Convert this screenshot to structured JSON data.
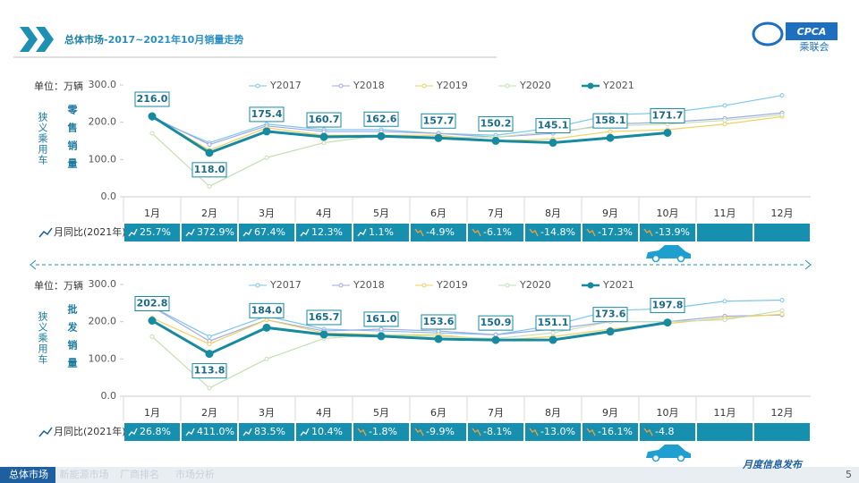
{
  "header": {
    "title_main": "总体市场",
    "title_rest": "-2017~2021年10月销量走势",
    "logo": "CPCA",
    "logo_sub": "乘联会"
  },
  "chart_data": [
    {
      "type": "line",
      "unit": "单位：万辆",
      "side_label": "狭义乘用车",
      "chart_label": "零售销量",
      "categories": [
        "1月",
        "2月",
        "3月",
        "4月",
        "5月",
        "6月",
        "7月",
        "8月",
        "9月",
        "10月",
        "11月",
        "12月"
      ],
      "ylim": [
        0,
        300
      ],
      "yticks": [
        {
          "value": 0,
          "label": "0.0"
        },
        {
          "value": 100,
          "label": "100.0"
        },
        {
          "value": 200,
          "label": "200.0"
        },
        {
          "value": 300,
          "label": "300.0"
        }
      ],
      "grid": false,
      "series": [
        {
          "name": "Y2017",
          "color": "#7cc6ec",
          "values": [
            210,
            145,
            195,
            180,
            180,
            170,
            165,
            185,
            220,
            225,
            245,
            272
          ]
        },
        {
          "name": "Y2018",
          "color": "#9ea8e6",
          "values": [
            215,
            140,
            190,
            175,
            175,
            170,
            160,
            170,
            195,
            200,
            210,
            225
          ]
        },
        {
          "name": "Y2019",
          "color": "#f2cf5e",
          "values": [
            215,
            125,
            185,
            165,
            165,
            165,
            150,
            155,
            175,
            180,
            195,
            215
          ]
        },
        {
          "name": "Y2020",
          "color": "#c4dfb2",
          "values": [
            170,
            28,
            105,
            145,
            165,
            160,
            160,
            175,
            190,
            195,
            205,
            220
          ]
        },
        {
          "name": "Y2021",
          "color": "#178aa0",
          "values": [
            216.0,
            118.0,
            175.4,
            160.7,
            162.6,
            157.7,
            150.2,
            145.1,
            158.1,
            171.7,
            null,
            null
          ],
          "value_labels": [
            "216.0",
            "118.0",
            "175.4",
            "160.7",
            "162.6",
            "157.7",
            "150.2",
            "145.1",
            "158.1",
            "171.7",
            null,
            null
          ]
        }
      ],
      "yoy_label": "月同比(2021年)",
      "yoy": [
        "25.7%",
        "372.9%",
        "67.4%",
        "12.3%",
        "1.1%",
        "-4.9%",
        "-6.1%",
        "-14.8%",
        "-17.3%",
        "-13.9%"
      ]
    },
    {
      "type": "line",
      "unit": "单位：万辆",
      "side_label": "狭义乘用车",
      "chart_label": "批发销量",
      "categories": [
        "1月",
        "2月",
        "3月",
        "4月",
        "5月",
        "6月",
        "7月",
        "8月",
        "9月",
        "10月",
        "11月",
        "12月"
      ],
      "ylim": [
        0,
        300
      ],
      "yticks": [
        {
          "value": 0,
          "label": "0.0"
        },
        {
          "value": 100,
          "label": "100.0"
        },
        {
          "value": 200,
          "label": "200.0"
        },
        {
          "value": 300,
          "label": "300.0"
        }
      ],
      "grid": false,
      "series": [
        {
          "name": "Y2017",
          "color": "#7cc6ec",
          "values": [
            240,
            160,
            215,
            180,
            175,
            170,
            165,
            190,
            230,
            235,
            255,
            258
          ]
        },
        {
          "name": "Y2018",
          "color": "#9ea8e6",
          "values": [
            240,
            148,
            205,
            175,
            180,
            175,
            165,
            180,
            200,
            200,
            215,
            218
          ]
        },
        {
          "name": "Y2019",
          "color": "#f2cf5e",
          "values": [
            210,
            140,
            205,
            170,
            165,
            165,
            150,
            160,
            180,
            195,
            210,
            220
          ]
        },
        {
          "name": "Y2020",
          "color": "#c4dfb2",
          "values": [
            160,
            22,
            100,
            155,
            165,
            160,
            155,
            170,
            200,
            200,
            205,
            230
          ]
        },
        {
          "name": "Y2021",
          "color": "#178aa0",
          "values": [
            202.8,
            113.8,
            184.0,
            165.7,
            161.0,
            153.6,
            150.9,
            151.1,
            173.6,
            197.8,
            null,
            null
          ],
          "value_labels": [
            "202.8",
            "113.8",
            "184.0",
            "165.7",
            "161.0",
            "153.6",
            "150.9",
            "151.1",
            "173.6",
            "197.8",
            null,
            null
          ]
        }
      ],
      "yoy_label": "月同比(2021年)",
      "yoy": [
        "26.8%",
        "411.0%",
        "83.5%",
        "10.4%",
        "-1.8%",
        "-9.9%",
        "-8.1%",
        "-13.0%",
        "-16.1%",
        "-4.8"
      ]
    }
  ],
  "footer": {
    "tabs": [
      "总体市场",
      "新能源市场",
      "厂商排名",
      "市场分析"
    ],
    "note": "月度信息发布",
    "page": "5"
  }
}
